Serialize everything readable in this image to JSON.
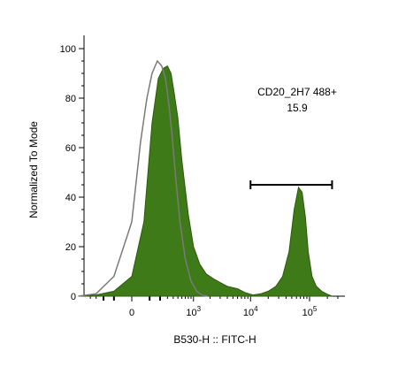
{
  "chart_data": {
    "type": "area",
    "xlabel": "B530-H :: FITC-H",
    "ylabel": "Normalized To Mode",
    "ylim": [
      0,
      100
    ],
    "x_scale": "biexponential",
    "x_tick_labels": [
      "0",
      "10^3",
      "10^4",
      "10^5"
    ],
    "y_ticks": [
      0,
      20,
      40,
      60,
      80,
      100
    ],
    "series": [
      {
        "fill": "#3f7a18",
        "stroke": "#2d5a0e",
        "x": [
          -700,
          -300,
          -100,
          0,
          60,
          120,
          180,
          240,
          300,
          360,
          420,
          500,
          600,
          800,
          1000,
          1300,
          1700,
          2300,
          3000,
          4000,
          6000,
          8000,
          11000,
          15000,
          20000,
          27000,
          35000,
          45000,
          55000,
          65000,
          75000,
          85000,
          95000,
          110000,
          130000,
          160000,
          200000,
          240000
        ],
        "values": [
          0,
          0.5,
          2,
          8,
          30,
          70,
          88,
          92,
          93,
          90,
          82,
          72,
          55,
          33,
          20,
          13,
          9,
          7,
          5.5,
          4,
          3,
          1.5,
          0.5,
          1,
          2,
          4,
          8,
          18,
          35,
          44,
          42,
          32,
          18,
          8,
          4,
          2,
          0.8,
          0
        ]
      },
      {
        "stroke": "#7a7a7a",
        "x": [
          -700,
          -300,
          -100,
          0,
          40,
          80,
          120,
          170,
          220,
          270,
          320,
          380,
          450,
          550,
          700,
          900,
          1150,
          1400,
          1800
        ],
        "values": [
          0,
          1,
          8,
          30,
          62,
          80,
          90,
          95,
          93,
          88,
          78,
          65,
          48,
          30,
          15,
          6,
          2,
          0.5,
          0
        ]
      }
    ],
    "annotations": [
      {
        "text": "CD20_2H7 488+",
        "value": "15.9",
        "gate_x_range": [
          10000,
          240000
        ],
        "gate_y": 45
      }
    ]
  }
}
